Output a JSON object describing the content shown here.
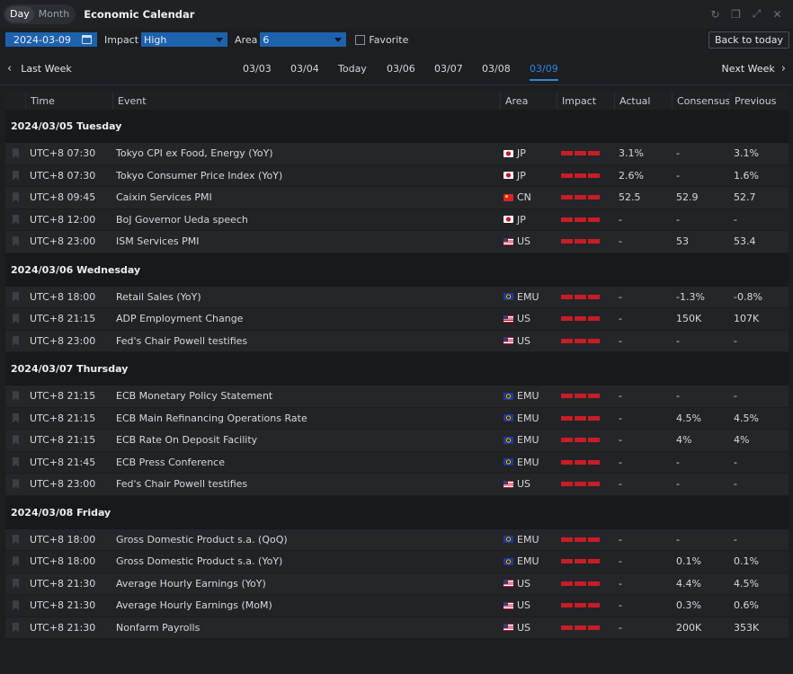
{
  "titlebar": {
    "view_tabs": [
      {
        "label": "Day",
        "active": true
      },
      {
        "label": "Month",
        "active": false
      }
    ],
    "title": "Economic Calendar",
    "controls": [
      "refresh-icon",
      "popout-icon",
      "expand-icon",
      "close-icon"
    ]
  },
  "toolbar": {
    "date": "2024-03-09",
    "impact_label": "Impact",
    "impact_value": "High",
    "area_label": "Area",
    "area_value": "6",
    "favorite_label": "Favorite",
    "favorite_checked": false,
    "back_to_today": "Back to today"
  },
  "weeknav": {
    "prev": "Last Week",
    "next": "Next Week",
    "days": [
      "03/03",
      "03/04",
      "Today",
      "03/06",
      "03/07",
      "03/08",
      "03/09"
    ],
    "active_day": "03/09"
  },
  "table": {
    "headers": [
      "Time",
      "Event",
      "Area",
      "Impact",
      "Actual",
      "Consensus",
      "Previous"
    ],
    "impact_color": "#c81d25",
    "groups": [
      {
        "date": "2024/03/05 Tuesday",
        "rows": [
          {
            "time": "UTC+8 07:30",
            "event": "Tokyo CPI ex Food, Energy (YoY)",
            "area": "JP",
            "actual": "3.1%",
            "consensus": "-",
            "previous": "3.1%"
          },
          {
            "time": "UTC+8 07:30",
            "event": "Tokyo Consumer Price Index (YoY)",
            "area": "JP",
            "actual": "2.6%",
            "consensus": "-",
            "previous": "1.6%"
          },
          {
            "time": "UTC+8 09:45",
            "event": "Caixin Services PMI",
            "area": "CN",
            "actual": "52.5",
            "consensus": "52.9",
            "previous": "52.7"
          },
          {
            "time": "UTC+8 12:00",
            "event": "BoJ Governor Ueda speech",
            "area": "JP",
            "actual": "-",
            "consensus": "-",
            "previous": "-"
          },
          {
            "time": "UTC+8 23:00",
            "event": "ISM Services PMI",
            "area": "US",
            "actual": "-",
            "consensus": "53",
            "previous": "53.4"
          }
        ]
      },
      {
        "date": "2024/03/06 Wednesday",
        "rows": [
          {
            "time": "UTC+8 18:00",
            "event": "Retail Sales (YoY)",
            "area": "EMU",
            "actual": "-",
            "consensus": "-1.3%",
            "previous": "-0.8%"
          },
          {
            "time": "UTC+8 21:15",
            "event": "ADP Employment Change",
            "area": "US",
            "actual": "-",
            "consensus": "150K",
            "previous": "107K"
          },
          {
            "time": "UTC+8 23:00",
            "event": "Fed's Chair Powell testifies",
            "area": "US",
            "actual": "-",
            "consensus": "-",
            "previous": "-"
          }
        ]
      },
      {
        "date": "2024/03/07 Thursday",
        "rows": [
          {
            "time": "UTC+8 21:15",
            "event": "ECB Monetary Policy Statement",
            "area": "EMU",
            "actual": "-",
            "consensus": "-",
            "previous": "-"
          },
          {
            "time": "UTC+8 21:15",
            "event": "ECB Main Refinancing Operations Rate",
            "area": "EMU",
            "actual": "-",
            "consensus": "4.5%",
            "previous": "4.5%"
          },
          {
            "time": "UTC+8 21:15",
            "event": "ECB Rate On Deposit Facility",
            "area": "EMU",
            "actual": "-",
            "consensus": "4%",
            "previous": "4%"
          },
          {
            "time": "UTC+8 21:45",
            "event": "ECB Press Conference",
            "area": "EMU",
            "actual": "-",
            "consensus": "-",
            "previous": "-"
          },
          {
            "time": "UTC+8 23:00",
            "event": "Fed's Chair Powell testifies",
            "area": "US",
            "actual": "-",
            "consensus": "-",
            "previous": "-"
          }
        ]
      },
      {
        "date": "2024/03/08 Friday",
        "rows": [
          {
            "time": "UTC+8 18:00",
            "event": "Gross Domestic Product s.a. (QoQ)",
            "area": "EMU",
            "actual": "-",
            "consensus": "-",
            "previous": "-"
          },
          {
            "time": "UTC+8 18:00",
            "event": "Gross Domestic Product s.a. (YoY)",
            "area": "EMU",
            "actual": "-",
            "consensus": "0.1%",
            "previous": "0.1%"
          },
          {
            "time": "UTC+8 21:30",
            "event": "Average Hourly Earnings (YoY)",
            "area": "US",
            "actual": "-",
            "consensus": "4.4%",
            "previous": "4.5%"
          },
          {
            "time": "UTC+8 21:30",
            "event": "Average Hourly Earnings (MoM)",
            "area": "US",
            "actual": "-",
            "consensus": "0.3%",
            "previous": "0.6%"
          },
          {
            "time": "UTC+8 21:30",
            "event": "Nonfarm Payrolls",
            "area": "US",
            "actual": "-",
            "consensus": "200K",
            "previous": "353K"
          }
        ]
      }
    ]
  }
}
